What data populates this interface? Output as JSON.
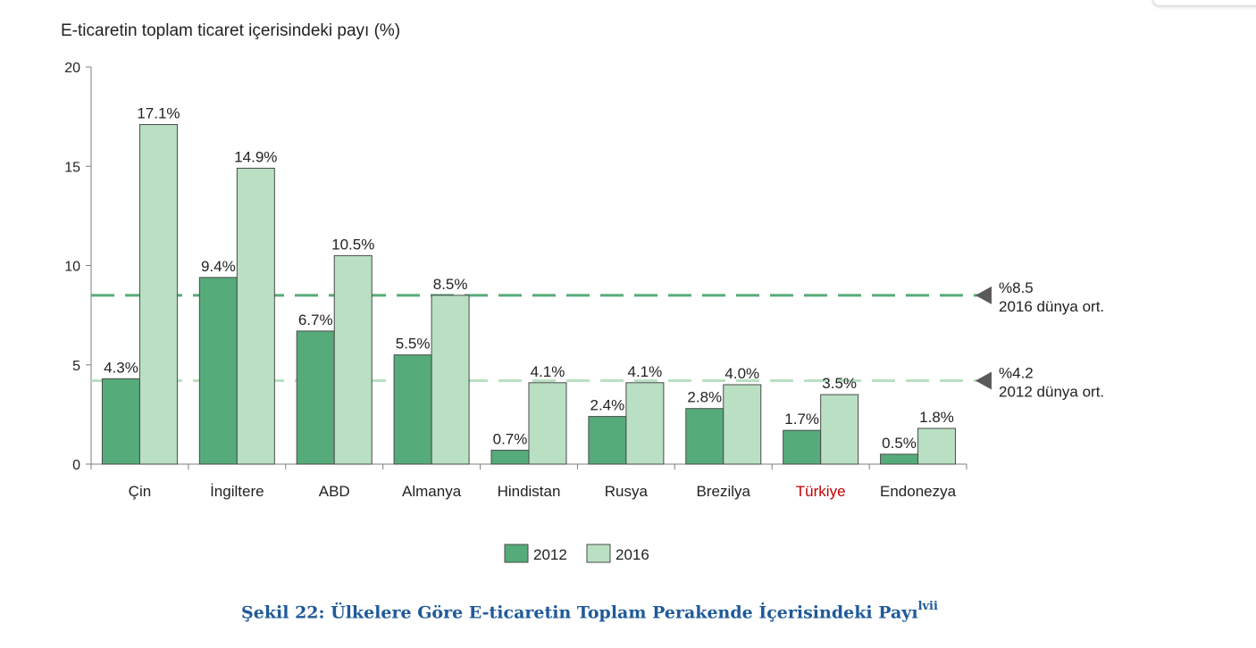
{
  "chart_data": {
    "type": "bar",
    "title": "E-ticaretin toplam ticaret içerisindeki payı (%)",
    "categories": [
      "Çin",
      "İngiltere",
      "ABD",
      "Almanya",
      "Hindistan",
      "Rusya",
      "Brezilya",
      "Türkiye",
      "Endonezya"
    ],
    "highlight_category": "Türkiye",
    "series": [
      {
        "name": "2012",
        "color": "#56ab7a",
        "values": [
          4.3,
          9.4,
          6.7,
          5.5,
          0.7,
          2.4,
          2.8,
          1.7,
          0.5
        ],
        "labels": [
          "4.3%",
          "9.4%",
          "6.7%",
          "5.5%",
          "0.7%",
          "2.4%",
          "2.8%",
          "1.7%",
          "0.5%"
        ]
      },
      {
        "name": "2016",
        "color": "#b9e0c3",
        "values": [
          17.1,
          14.9,
          10.5,
          8.5,
          4.1,
          4.1,
          4.0,
          3.5,
          1.8
        ],
        "labels": [
          "17.1%",
          "14.9%",
          "10.5%",
          "8.5%",
          "4.1%",
          "4.1%",
          "4.0%",
          "3.5%",
          "1.8%"
        ]
      }
    ],
    "ylim": [
      0,
      20
    ],
    "yticks": [
      "0",
      "5",
      "10",
      "15",
      "20"
    ],
    "xlabel": "",
    "ylabel": "",
    "grid": false,
    "legend": "bottom-center",
    "reference_lines": [
      {
        "value": 8.5,
        "color": "#56ab7a",
        "label_line1": "%8.5",
        "label_line2": "2016 dünya ort."
      },
      {
        "value": 4.2,
        "color": "#b9e0c3",
        "label_line1": "%4.2",
        "label_line2": "2012 dünya ort."
      }
    ]
  },
  "caption": {
    "text": "Şekil 22: Ülkelere Göre E-ticaretin Toplam Perakende İçerisindeki Payı",
    "superscript": "lvii"
  }
}
